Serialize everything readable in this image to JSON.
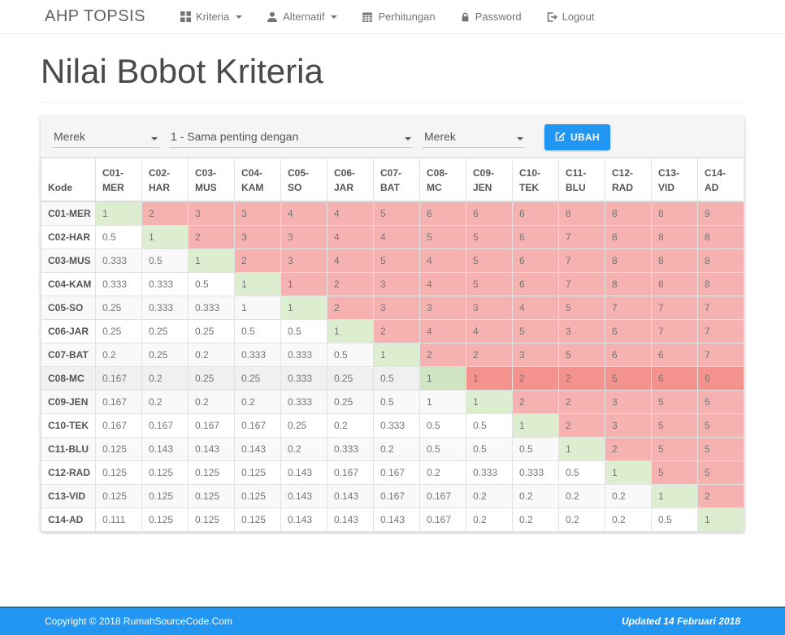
{
  "colors": {
    "accent": "#2196f3",
    "footer_blue": "#2196f3",
    "diagonal_green": "#ddedd0",
    "upper_red": "#f6b2b0",
    "hover_green": "#cfe5c3",
    "hover_red": "#f4938e"
  },
  "navbar": {
    "brand": "AHP TOPSIS",
    "items": [
      {
        "label": "Kriteria",
        "icon": "grid-icon",
        "has_caret": true
      },
      {
        "label": "Alternatif",
        "icon": "user-icon",
        "has_caret": true
      },
      {
        "label": "Perhitungan",
        "icon": "calculator-icon",
        "has_caret": false
      },
      {
        "label": "Password",
        "icon": "lock-icon",
        "has_caret": false
      },
      {
        "label": "Logout",
        "icon": "logout-icon",
        "has_caret": false
      }
    ]
  },
  "page": {
    "title": "Nilai Bobot Kriteria"
  },
  "form": {
    "select_left_value": "Merek",
    "select_middle_value": "1 - Sama penting dengan",
    "select_right_value": "Merek",
    "submit_label": "UBAH"
  },
  "table": {
    "header": [
      "Kode",
      "C01-MER",
      "C02-HAR",
      "C03-MUS",
      "C04-KAM",
      "C05-SO",
      "C06-JAR",
      "C07-BAT",
      "C08-MC",
      "C09-JEN",
      "C10-TEK",
      "C11-BLU",
      "C12-RAD",
      "C13-VID",
      "C14-AD"
    ],
    "highlighted_row": "C08-MC",
    "rows": [
      {
        "kode": "C01-MER",
        "values": [
          "1",
          "2",
          "3",
          "3",
          "4",
          "4",
          "5",
          "6",
          "6",
          "6",
          "8",
          "8",
          "8",
          "9"
        ]
      },
      {
        "kode": "C02-HAR",
        "values": [
          "0.5",
          "1",
          "2",
          "3",
          "3",
          "4",
          "4",
          "5",
          "5",
          "6",
          "7",
          "8",
          "8",
          "8"
        ]
      },
      {
        "kode": "C03-MUS",
        "values": [
          "0.333",
          "0.5",
          "1",
          "2",
          "3",
          "4",
          "5",
          "4",
          "5",
          "6",
          "7",
          "8",
          "8",
          "8"
        ]
      },
      {
        "kode": "C04-KAM",
        "values": [
          "0.333",
          "0.333",
          "0.5",
          "1",
          "1",
          "2",
          "3",
          "4",
          "5",
          "6",
          "7",
          "8",
          "8",
          "8"
        ]
      },
      {
        "kode": "C05-SO",
        "values": [
          "0.25",
          "0.333",
          "0.333",
          "1",
          "1",
          "2",
          "3",
          "3",
          "3",
          "4",
          "5",
          "7",
          "7",
          "7"
        ]
      },
      {
        "kode": "C06-JAR",
        "values": [
          "0.25",
          "0.25",
          "0.25",
          "0.5",
          "0.5",
          "1",
          "2",
          "4",
          "4",
          "5",
          "3",
          "6",
          "7",
          "7"
        ]
      },
      {
        "kode": "C07-BAT",
        "values": [
          "0.2",
          "0.25",
          "0.2",
          "0.333",
          "0.333",
          "0.5",
          "1",
          "2",
          "2",
          "3",
          "5",
          "6",
          "6",
          "7"
        ]
      },
      {
        "kode": "C08-MC",
        "values": [
          "0.167",
          "0.2",
          "0.25",
          "0.25",
          "0.333",
          "0.25",
          "0.5",
          "1",
          "1",
          "2",
          "2",
          "5",
          "6",
          "6"
        ]
      },
      {
        "kode": "C09-JEN",
        "values": [
          "0.167",
          "0.2",
          "0.2",
          "0.2",
          "0.333",
          "0.25",
          "0.5",
          "1",
          "1",
          "2",
          "2",
          "3",
          "5",
          "5"
        ]
      },
      {
        "kode": "C10-TEK",
        "values": [
          "0.167",
          "0.167",
          "0.167",
          "0.167",
          "0.25",
          "0.2",
          "0.333",
          "0.5",
          "0.5",
          "1",
          "2",
          "3",
          "5",
          "5"
        ]
      },
      {
        "kode": "C11-BLU",
        "values": [
          "0.125",
          "0.143",
          "0.143",
          "0.143",
          "0.2",
          "0.333",
          "0.2",
          "0.5",
          "0.5",
          "0.5",
          "1",
          "2",
          "5",
          "5"
        ]
      },
      {
        "kode": "C12-RAD",
        "values": [
          "0.125",
          "0.125",
          "0.125",
          "0.125",
          "0.143",
          "0.167",
          "0.167",
          "0.2",
          "0.333",
          "0.333",
          "0.5",
          "1",
          "5",
          "5"
        ]
      },
      {
        "kode": "C13-VID",
        "values": [
          "0.125",
          "0.125",
          "0.125",
          "0.125",
          "0.143",
          "0.143",
          "0.167",
          "0.167",
          "0.2",
          "0.2",
          "0.2",
          "0.2",
          "1",
          "2"
        ]
      },
      {
        "kode": "C14-AD",
        "values": [
          "0.111",
          "0.125",
          "0.125",
          "0.125",
          "0.143",
          "0.143",
          "0.143",
          "0.167",
          "0.2",
          "0.2",
          "0.2",
          "0.2",
          "0.5",
          "1"
        ]
      }
    ]
  },
  "footer": {
    "copyright": "Copyright © 2018 RumahSourceCode.Com",
    "updated": "Updated 14 Februari 2018"
  }
}
